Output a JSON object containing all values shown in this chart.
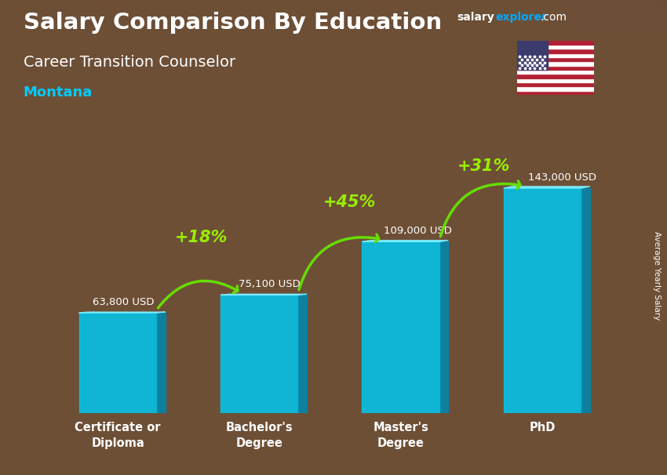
{
  "title_line1": "Salary Comparison By Education",
  "subtitle": "Career Transition Counselor",
  "location": "Montana",
  "ylabel": "Average Yearly Salary",
  "categories": [
    "Certificate or\nDiploma",
    "Bachelor's\nDegree",
    "Master's\nDegree",
    "PhD"
  ],
  "values": [
    63800,
    75100,
    109000,
    143000
  ],
  "value_labels": [
    "63,800 USD",
    "75,100 USD",
    "109,000 USD",
    "143,000 USD"
  ],
  "pct_labels": [
    "+18%",
    "+45%",
    "+31%"
  ],
  "bar_face_color": "#00c8f0",
  "bar_right_color": "#0088b0",
  "bar_left_color": "#40d8f8",
  "bar_top_color": "#80eeff",
  "bg_color": "#6b4c35",
  "title_color": "#ffffff",
  "subtitle_color": "#ffffff",
  "location_color": "#00ccff",
  "value_label_color": "#ffffff",
  "pct_color": "#99ee00",
  "arrow_color": "#66dd00",
  "ylabel_color": "#ffffff",
  "watermark_salary_color": "#ffffff",
  "watermark_explorer_color": "#00aaff",
  "watermark_com_color": "#ffffff",
  "ylim_max": 175000,
  "bar_width": 0.55,
  "bar_depth": 0.06
}
